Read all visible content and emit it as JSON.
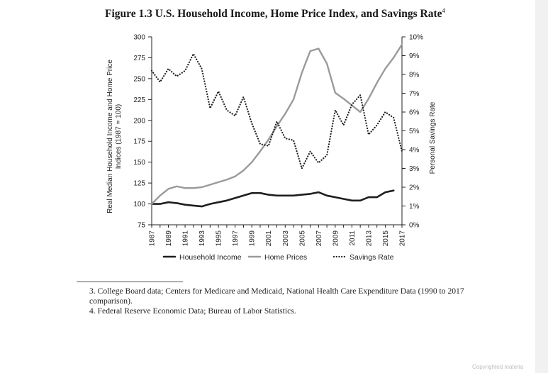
{
  "figure": {
    "title": "Figure 1.3 U.S. Household Income, Home Price Index, and Savings Rate",
    "title_note": "4"
  },
  "chart_data": {
    "type": "line",
    "x": [
      1987,
      1988,
      1989,
      1990,
      1991,
      1992,
      1993,
      1994,
      1995,
      1996,
      1997,
      1998,
      1999,
      2000,
      2001,
      2002,
      2003,
      2004,
      2005,
      2006,
      2007,
      2008,
      2009,
      2010,
      2011,
      2012,
      2013,
      2014,
      2015,
      2016,
      2017
    ],
    "x_tick_labels": [
      "1987",
      "1989",
      "1991",
      "1993",
      "1995",
      "1997",
      "1999",
      "2001",
      "2003",
      "2005",
      "2007",
      "2009",
      "2011",
      "2013",
      "2015",
      "2017"
    ],
    "ylabel": "Real Median Household Income and Home Price Indices (1987 = 100)",
    "ylim": [
      75,
      300
    ],
    "y_ticks": [
      "75",
      "100",
      "125",
      "150",
      "175",
      "200",
      "225",
      "250",
      "275",
      "300"
    ],
    "y2label": "Personal Savings Rate",
    "y2lim": [
      0,
      10
    ],
    "y2_ticks": [
      "0%",
      "1%",
      "2%",
      "3%",
      "4%",
      "5%",
      "6%",
      "7%",
      "8%",
      "9%",
      "10%"
    ],
    "grid": false,
    "legend_position": "bottom",
    "series": [
      {
        "name": "Household Income",
        "axis": "left",
        "color": "#1e1e1e",
        "style": "solid",
        "values": [
          100,
          100,
          102,
          101,
          99,
          98,
          97,
          100,
          102,
          104,
          107,
          110,
          113,
          113,
          111,
          110,
          110,
          110,
          111,
          112,
          114,
          110,
          108,
          106,
          104,
          104,
          108,
          108,
          114,
          116,
          null
        ]
      },
      {
        "name": "Home Prices",
        "axis": "left",
        "color": "#9a9a9a",
        "style": "solid",
        "values": [
          100,
          110,
          118,
          121,
          119,
          119,
          120,
          123,
          126,
          129,
          133,
          140,
          150,
          163,
          177,
          193,
          208,
          225,
          257,
          283,
          286,
          268,
          233,
          226,
          218,
          210,
          226,
          245,
          262,
          275,
          291
        ]
      },
      {
        "name": "Savings Rate",
        "axis": "right",
        "color": "#1e1e1e",
        "style": "dotted",
        "values": [
          8.2,
          7.6,
          8.3,
          7.9,
          8.2,
          9.1,
          8.3,
          6.2,
          7.1,
          6.1,
          5.8,
          6.8,
          5.4,
          4.3,
          4.2,
          5.5,
          4.6,
          4.5,
          3.0,
          3.9,
          3.3,
          3.7,
          6.1,
          5.3,
          6.4,
          6.9,
          4.8,
          5.3,
          6.0,
          5.7,
          3.9
        ]
      }
    ]
  },
  "footnotes": [
    "3. College Board data; Centers for Medicare and Medicaid, National Health Care Expenditure Data (1990 to 2017 comparison).",
    "4. Federal Reserve Economic Data; Bureau of Labor Statistics."
  ],
  "watermark": "Copyrighted materia"
}
